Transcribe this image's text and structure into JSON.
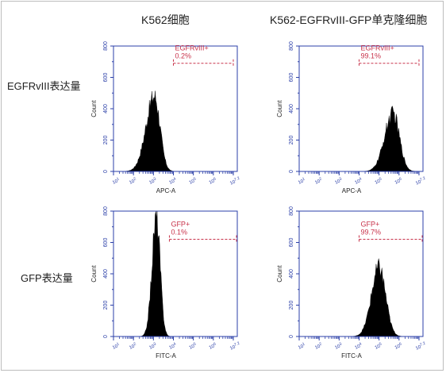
{
  "figure": {
    "col_titles": [
      "K562细胞",
      "K562-EGFRvIII-GFP单克隆细胞"
    ],
    "row_titles": [
      "EGFRvIII表达量",
      "GFP表达量"
    ]
  },
  "colors": {
    "axis": "#2b3fa8",
    "gate": "#c8324a",
    "fill": "#000000"
  },
  "chart_data": [
    {
      "type": "histogram",
      "panel": "row1-col1",
      "xlabel": "APC-A",
      "ylabel": "Count",
      "x_scale": "log",
      "xlim": [
        1,
        7.2
      ],
      "ylim": [
        0,
        800
      ],
      "yticks": [
        0,
        200,
        400,
        600,
        800
      ],
      "xtick_labels": [
        "10^1",
        "10^2",
        "10^3",
        "10^4",
        "10^5",
        "10^6",
        "10^7.2"
      ],
      "gate": {
        "label": "EGFRvIII+",
        "value": "0.2%",
        "x_start": 4.0,
        "x_end": 7.0,
        "y": 690
      },
      "peak_log": 3.05,
      "peak_count": 480,
      "sigma_left": 0.42,
      "sigma_right": 0.28
    },
    {
      "type": "histogram",
      "panel": "row1-col2",
      "xlabel": "APC-A",
      "ylabel": "Count",
      "x_scale": "log",
      "xlim": [
        1,
        7.2
      ],
      "ylim": [
        0,
        800
      ],
      "yticks": [
        0,
        200,
        400,
        600,
        800
      ],
      "xtick_labels": [
        "10^1",
        "10^2",
        "10^3",
        "10^4",
        "10^5",
        "10^6",
        "10^7.2"
      ],
      "gate": {
        "label": "EGFRvIII+",
        "value": "99.1%",
        "x_start": 4.0,
        "x_end": 7.0,
        "y": 690
      },
      "peak_log": 5.7,
      "peak_count": 370,
      "sigma_left": 0.42,
      "sigma_right": 0.32
    },
    {
      "type": "histogram",
      "panel": "row2-col1",
      "xlabel": "FITC-A",
      "ylabel": "Count",
      "x_scale": "log",
      "xlim": [
        1,
        7.2
      ],
      "ylim": [
        0,
        800
      ],
      "yticks": [
        0,
        200,
        400,
        600,
        800
      ],
      "xtick_labels": [
        "10^1",
        "10^2",
        "10^3",
        "10^4",
        "10^5",
        "10^6",
        "10^7.2"
      ],
      "gate": {
        "label": "GFP+",
        "value": "0.1%",
        "x_start": 3.8,
        "x_end": 7.2,
        "y": 620
      },
      "peak_log": 3.15,
      "peak_count": 760,
      "sigma_left": 0.22,
      "sigma_right": 0.19
    },
    {
      "type": "histogram",
      "panel": "row2-col2",
      "xlabel": "FITC-A",
      "ylabel": "Count",
      "x_scale": "log",
      "xlim": [
        1,
        7.2
      ],
      "ylim": [
        0,
        800
      ],
      "yticks": [
        0,
        200,
        400,
        600,
        800
      ],
      "xtick_labels": [
        "10^1",
        "10^2",
        "10^3",
        "10^4",
        "10^5",
        "10^6",
        "10^7.2"
      ],
      "gate": {
        "label": "GFP+",
        "value": "99.7%",
        "x_start": 4.0,
        "x_end": 7.2,
        "y": 620
      },
      "peak_log": 5.0,
      "peak_count": 440,
      "sigma_left": 0.38,
      "sigma_right": 0.33
    }
  ]
}
